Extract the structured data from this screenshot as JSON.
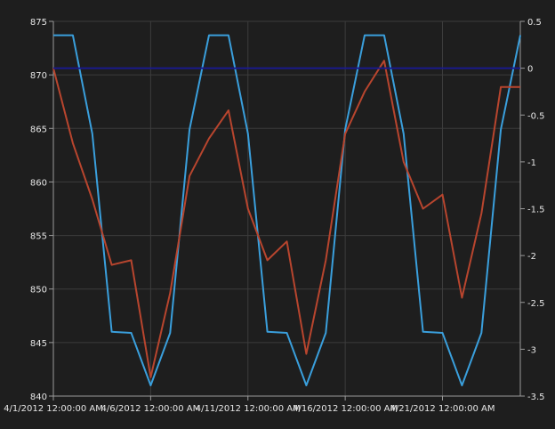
{
  "chart_data": {
    "type": "line",
    "x_type": "date",
    "x": [
      "2012-04-01",
      "2012-04-02",
      "2012-04-03",
      "2012-04-04",
      "2012-04-05",
      "2012-04-06",
      "2012-04-07",
      "2012-04-08",
      "2012-04-09",
      "2012-04-10",
      "2012-04-11",
      "2012-04-12",
      "2012-04-13",
      "2012-04-14",
      "2012-04-15",
      "2012-04-16",
      "2012-04-17",
      "2012-04-18",
      "2012-04-19",
      "2012-04-20",
      "2012-04-21",
      "2012-04-22",
      "2012-04-23",
      "2012-04-24",
      "2012-04-25"
    ],
    "x_ticks": [
      "4/1/2012 12:00:00 AM",
      "4/6/2012 12:00:00 AM",
      "4/11/2012 12:00:00 AM",
      "4/16/2012 12:00:00 AM",
      "4/21/2012 12:00:00 AM"
    ],
    "xlim": [
      "2012-04-01",
      "2012-04-25"
    ],
    "y_left": {
      "min": 840,
      "max": 875,
      "ticks": [
        840,
        845,
        850,
        855,
        860,
        865,
        870,
        875
      ]
    },
    "y_right": {
      "min": -3.5,
      "max": 0.5,
      "ticks": [
        -3.5,
        -3,
        -2.5,
        -2,
        -1.5,
        -1,
        -0.5,
        0,
        0.5
      ]
    },
    "grid": true,
    "legend": "none",
    "series": [
      {
        "axis": "left",
        "color": "#3a9fdc",
        "values": [
          873.7,
          873.7,
          864.5,
          846.0,
          845.9,
          841.0,
          845.9,
          864.9,
          873.7,
          873.7,
          864.5,
          846.0,
          845.9,
          841.0,
          845.9,
          864.9,
          873.7,
          873.7,
          864.5,
          846.0,
          845.9,
          841.0,
          845.9,
          864.9,
          873.7
        ]
      },
      {
        "axis": "right",
        "color": "#b8452e",
        "values": [
          0.0,
          -0.8,
          -1.4,
          -2.1,
          -2.05,
          -3.3,
          -2.4,
          -1.15,
          -0.75,
          -0.45,
          -1.5,
          -2.05,
          -1.85,
          -3.05,
          -2.05,
          -0.7,
          -0.25,
          0.08,
          -1.0,
          -1.5,
          -1.35,
          -2.45,
          -1.55,
          -0.2,
          -0.2
        ]
      },
      {
        "axis": "right",
        "color": "#1a1a8c",
        "values": [
          0,
          0,
          0,
          0,
          0,
          0,
          0,
          0,
          0,
          0,
          0,
          0,
          0,
          0,
          0,
          0,
          0,
          0,
          0,
          0,
          0,
          0,
          0,
          0,
          0
        ]
      }
    ]
  }
}
